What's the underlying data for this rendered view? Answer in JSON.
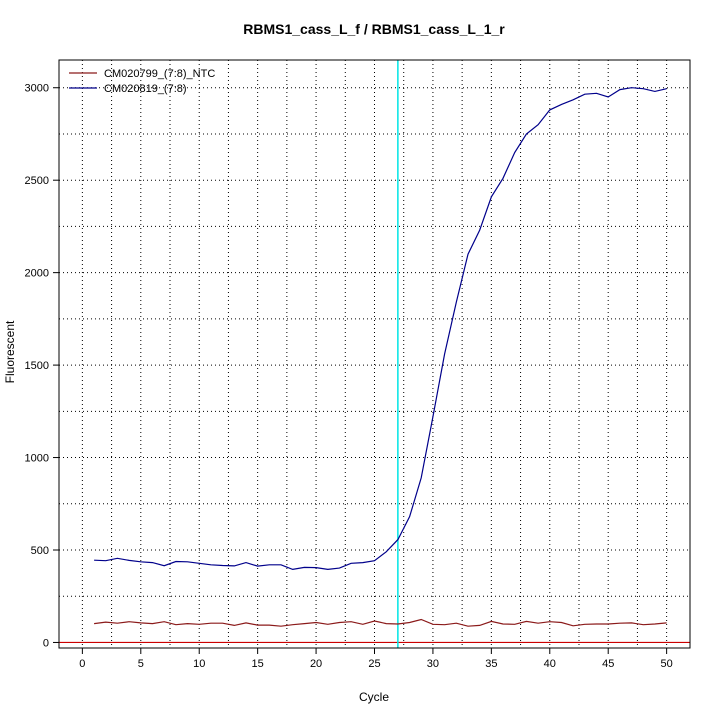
{
  "chart_data": {
    "type": "line",
    "title": "RBMS1_cass_L_f / RBMS1_cass_L_1_r",
    "xlabel": "Cycle",
    "ylabel": "Fluorescent",
    "xlim": [
      -2,
      52
    ],
    "ylim": [
      -30,
      3150
    ],
    "x_ticks": [
      0,
      5,
      10,
      15,
      20,
      25,
      30,
      35,
      40,
      45,
      50
    ],
    "y_ticks": [
      0,
      500,
      1000,
      1500,
      2000,
      2500,
      3000
    ],
    "grid_x_minor": [
      2.5,
      7.5,
      12.5,
      17.5,
      22.5,
      27.5,
      32.5,
      37.5,
      42.5,
      47.5
    ],
    "grid_y_minor": [
      250,
      750,
      1250,
      1750,
      2250,
      2750
    ],
    "threshold_cycle": 27,
    "threshold_color": "#00e5e5",
    "baseline_color": "#cc0000",
    "legend_position": "top-left",
    "series": [
      {
        "name": "CM020799_(7:8)_NTC",
        "color": "#8b1a1a",
        "x": [
          1,
          2,
          3,
          4,
          5,
          6,
          7,
          8,
          9,
          10,
          11,
          12,
          13,
          14,
          15,
          16,
          17,
          18,
          19,
          20,
          21,
          22,
          23,
          24,
          25,
          26,
          27,
          28,
          29,
          30,
          31,
          32,
          33,
          34,
          35,
          36,
          37,
          38,
          39,
          40,
          41,
          42,
          43,
          44,
          45,
          46,
          47,
          48,
          49,
          50
        ],
        "values": [
          102,
          110,
          104,
          112,
          106,
          102,
          112,
          96,
          102,
          98,
          104,
          104,
          92,
          106,
          94,
          94,
          88,
          96,
          102,
          108,
          98,
          108,
          112,
          98,
          116,
          102,
          100,
          108,
          124,
          98,
          96,
          104,
          88,
          92,
          114,
          100,
          98,
          114,
          104,
          112,
          108,
          90,
          98,
          100,
          100,
          104,
          106,
          96,
          100,
          106
        ]
      },
      {
        "name": "CM020819_(7:8)",
        "color": "#00008b",
        "x": [
          1,
          2,
          3,
          4,
          5,
          6,
          7,
          8,
          9,
          10,
          11,
          12,
          13,
          14,
          15,
          16,
          17,
          18,
          19,
          20,
          21,
          22,
          23,
          24,
          25,
          26,
          27,
          28,
          29,
          30,
          31,
          32,
          33,
          34,
          35,
          36,
          37,
          38,
          39,
          40,
          41,
          42,
          43,
          44,
          45,
          46,
          47,
          48,
          49,
          50
        ],
        "values": [
          445,
          442,
          455,
          444,
          436,
          432,
          415,
          438,
          436,
          428,
          420,
          416,
          414,
          432,
          413,
          420,
          420,
          395,
          406,
          405,
          395,
          402,
          428,
          432,
          442,
          490,
          556,
          680,
          890,
          1220,
          1560,
          1840,
          2100,
          2230,
          2410,
          2510,
          2650,
          2750,
          2800,
          2880,
          2910,
          2935,
          2965,
          2970,
          2950,
          2990,
          3000,
          2995,
          2980,
          2995
        ]
      }
    ]
  }
}
